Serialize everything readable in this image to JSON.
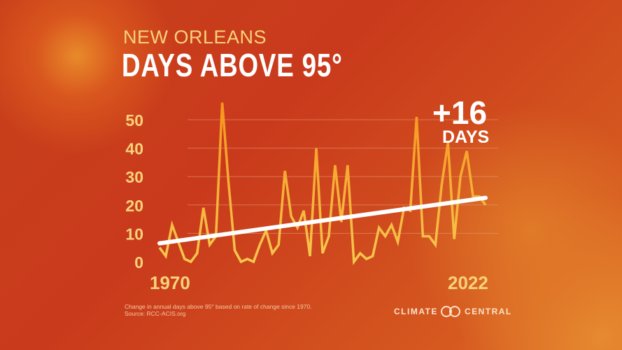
{
  "header": {
    "subtitle": "NEW ORLEANS",
    "title": "DAYS ABOVE 95°"
  },
  "annotation": {
    "value": "+16",
    "unit": "DAYS"
  },
  "footer": {
    "note": "Change in annual days above 95° based on rate of change since 1970.",
    "source": "Source: RCC-ACIS.org",
    "logo_left": "CLIMATE",
    "logo_right": "CENTRAL"
  },
  "chart_data": {
    "type": "line",
    "title": "DAYS ABOVE 95°",
    "x": [
      1970,
      1971,
      1972,
      1973,
      1974,
      1975,
      1976,
      1977,
      1978,
      1979,
      1980,
      1981,
      1982,
      1983,
      1984,
      1985,
      1986,
      1987,
      1988,
      1989,
      1990,
      1991,
      1992,
      1993,
      1994,
      1995,
      1996,
      1997,
      1998,
      1999,
      2000,
      2001,
      2002,
      2003,
      2004,
      2005,
      2006,
      2007,
      2008,
      2009,
      2010,
      2011,
      2012,
      2013,
      2014,
      2015,
      2016,
      2017,
      2018,
      2019,
      2020,
      2021,
      2022
    ],
    "values": [
      5,
      2,
      13,
      7,
      1,
      0,
      3,
      19,
      6,
      9,
      56,
      28,
      4,
      0,
      1,
      0,
      6,
      11,
      3,
      6,
      32,
      16,
      12,
      18,
      2,
      40,
      3,
      9,
      34,
      14,
      34,
      0,
      3,
      1,
      2,
      12,
      9,
      13,
      7,
      19,
      18,
      51,
      9,
      9,
      6,
      27,
      42,
      8,
      30,
      39,
      23,
      23,
      20
    ],
    "trend": {
      "start": 6.5,
      "end": 22.5
    },
    "xlim": [
      1970,
      2022
    ],
    "ylim": [
      0,
      55
    ],
    "y_ticks": [
      "0",
      "10",
      "20",
      "30",
      "40",
      "50"
    ],
    "x_tick_labels": [
      "1970",
      "2022"
    ],
    "grid": true,
    "colors": {
      "line_low": "#f6c84e",
      "line_high": "#f7941d",
      "trend": "#ffffff",
      "grid": "#e8a07a"
    }
  }
}
